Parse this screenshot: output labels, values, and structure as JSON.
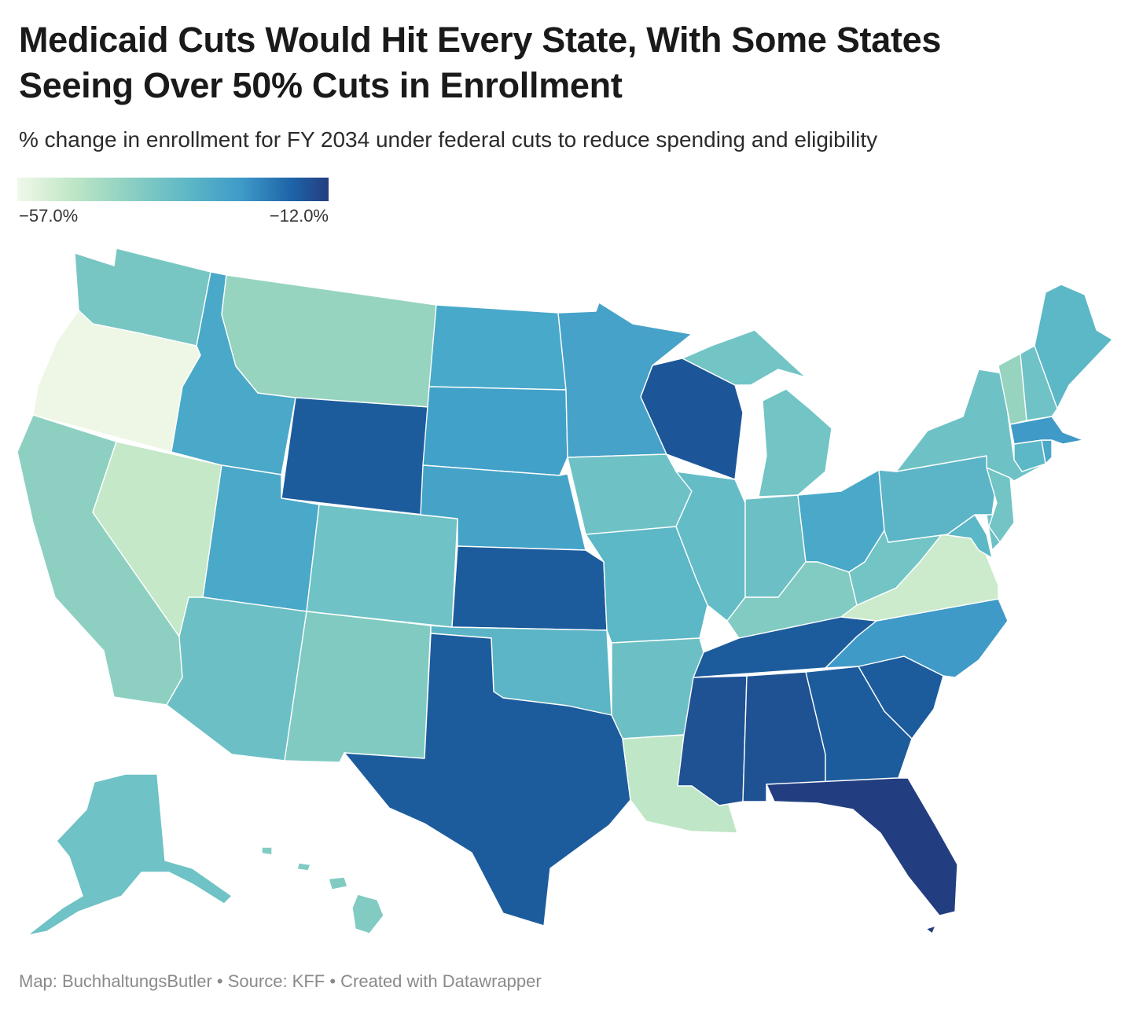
{
  "title": {
    "line1": "Medicaid Cuts Would Hit Every State, With Some States",
    "line2": "Seeing Over 50% Cuts in Enrollment"
  },
  "subtitle": "% change in enrollment for FY 2034 under federal cuts to reduce spending and eligibility",
  "legend": {
    "min_label": "−57.0%",
    "max_label": "−12.0%",
    "min_value": -57.0,
    "max_value": -12.0,
    "colors": [
      "#f1f8e9",
      "#bfe6c6",
      "#8fd1c2",
      "#5cb7c6",
      "#3f9ac8",
      "#1d64a8",
      "#233e80"
    ]
  },
  "map": {
    "type": "choropleth",
    "region": "United States",
    "states": {
      "WA": "#78c6c3",
      "OR": "#eef7e6",
      "CA": "#8dd0c1",
      "NV": "#c5e8c8",
      "ID": "#4aa8c8",
      "MT": "#96d4c0",
      "WY": "#1d5c9c",
      "UT": "#4aa8c8",
      "AZ": "#6cc0c5",
      "CO": "#6fc2c5",
      "NM": "#80cac2",
      "ND": "#48a9ca",
      "SD": "#42a1c8",
      "NE": "#45a3c8",
      "KS": "#1d5c9c",
      "OK": "#5cb5c6",
      "TX": "#1d5c9c",
      "MN": "#46a2c8",
      "IA": "#6ec2c5",
      "MO": "#5cb7c6",
      "AR": "#6cc0c5",
      "LA": "#bfe6c6",
      "WI": "#1d5698",
      "IL": "#64bcc6",
      "MI": "#72c4c5",
      "IN": "#6cc0c5",
      "OH": "#4aa8c8",
      "KY": "#82cbc2",
      "TN": "#1d5c9c",
      "MS": "#1f5293",
      "AL": "#1f5293",
      "GA": "#1d5c9c",
      "FL": "#233e80",
      "SC": "#1d5c9c",
      "NC": "#3f9ac8",
      "VA": "#ccebcc",
      "WV": "#72c4c5",
      "PA": "#5cb5c6",
      "NY": "#6ec2c5",
      "VT": "#96d4c0",
      "NH": "#6fc2c5",
      "ME": "#5cb7c6",
      "MA": "#3f9ac8",
      "RI": "#4aa8c8",
      "CT": "#5cb7c6",
      "NJ": "#72c4c5",
      "DE": "#6cc0c5",
      "MD": "#5cb7c6",
      "AK": "#6fc2c5",
      "HI": "#82cbc2"
    }
  },
  "footer": "Map: BuchhaltungsButler • Source: KFF • Created with Datawrapper"
}
